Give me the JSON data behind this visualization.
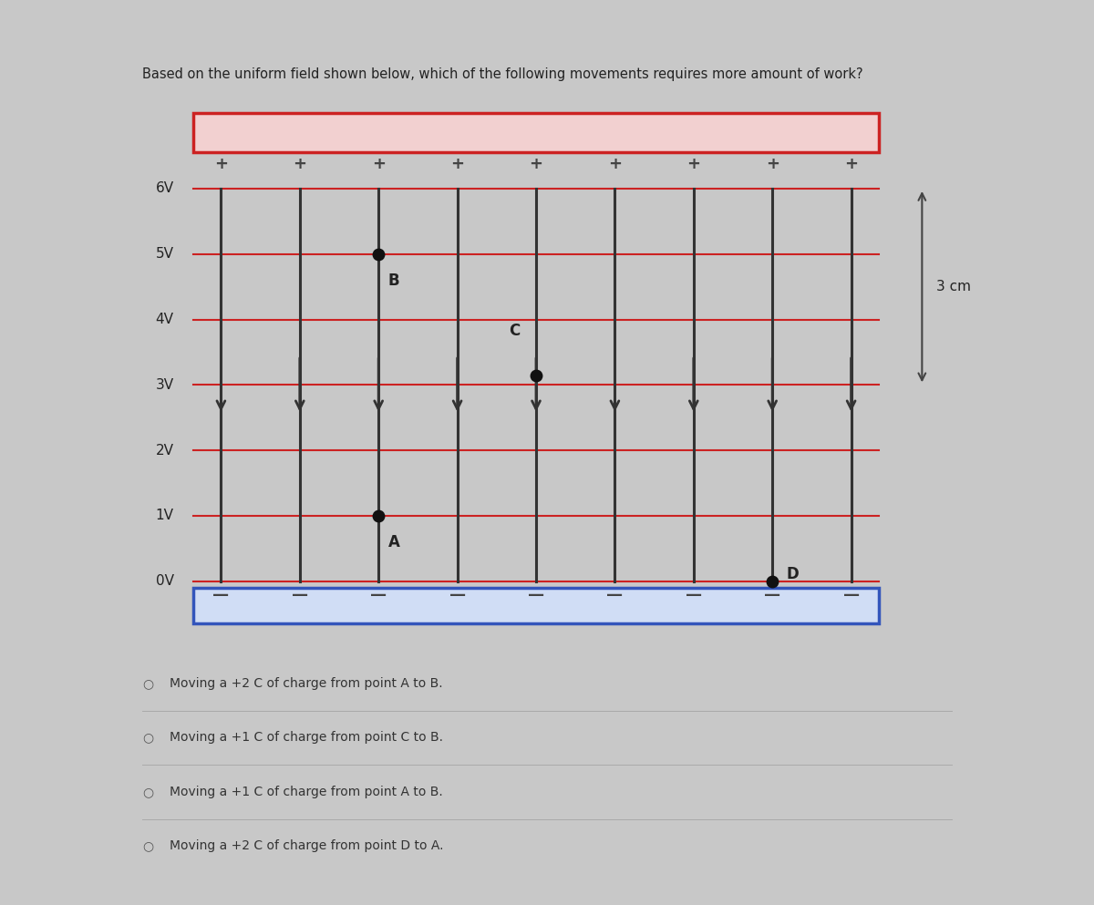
{
  "title": "Based on the uniform field shown below, which of the following movements requires more amount of work?",
  "title_fontsize": 10.5,
  "page_bg": "#c8c8c8",
  "left_bar_color": "#b0b0b0",
  "diagram_bg": "#e8e8e8",
  "red_plate_color": "#cc2222",
  "blue_plate_color": "#3355bb",
  "field_line_color": "#333333",
  "equipotential_color": "#cc2222",
  "voltage_labels": [
    "6V",
    "5V",
    "4V",
    "3V",
    "2V",
    "1V",
    "0V"
  ],
  "voltage_values": [
    6,
    5,
    4,
    3,
    2,
    1,
    0
  ],
  "arrow_color": "#333333",
  "point_color": "#111111",
  "options": [
    "Moving a +2 C of charge from point A to B.",
    "Moving a +1 C of charge from point C to B.",
    "Moving a +1 C of charge from point A to B.",
    "Moving a +2 C of charge from point D to A."
  ],
  "options_fontsize": 10,
  "dim_label": "3 cm",
  "field_x_positions": [
    1.0,
    2.0,
    3.0,
    4.0,
    5.0,
    6.0,
    7.0,
    8.0,
    9.0
  ],
  "plate_facecolor_red": "#f2d0d0",
  "plate_facecolor_blue": "#d0ddf5"
}
